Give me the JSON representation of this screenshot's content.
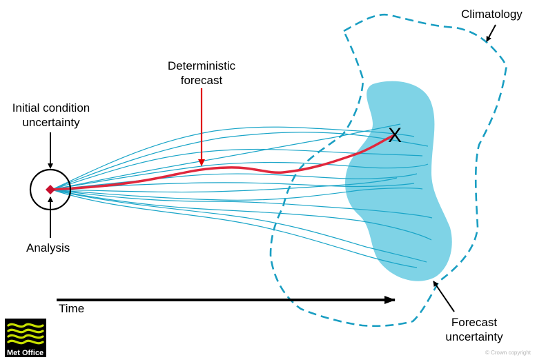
{
  "labels": {
    "initial_condition_line1": "Initial condition",
    "initial_condition_line2": "uncertainty",
    "deterministic_line1": "Deterministic",
    "deterministic_line2": "forecast",
    "analysis": "Analysis",
    "time": "Time",
    "climatology": "Climatology",
    "forecast_uncertainty_line1": "Forecast",
    "forecast_uncertainty_line2": "uncertainty",
    "end_marker": "X"
  },
  "logo": {
    "text": "Met Office",
    "background_color": "#000000",
    "wave_color": "#c8e000"
  },
  "copyright": "© Crown copyright",
  "colors": {
    "ensemble": "#1aa5c8",
    "deterministic": "#e0283c",
    "climatology": "#1a9ec2",
    "forecast_region": "#7fd3e6",
    "arrow_red": "#e00000",
    "arrow_black": "#000000"
  }
}
